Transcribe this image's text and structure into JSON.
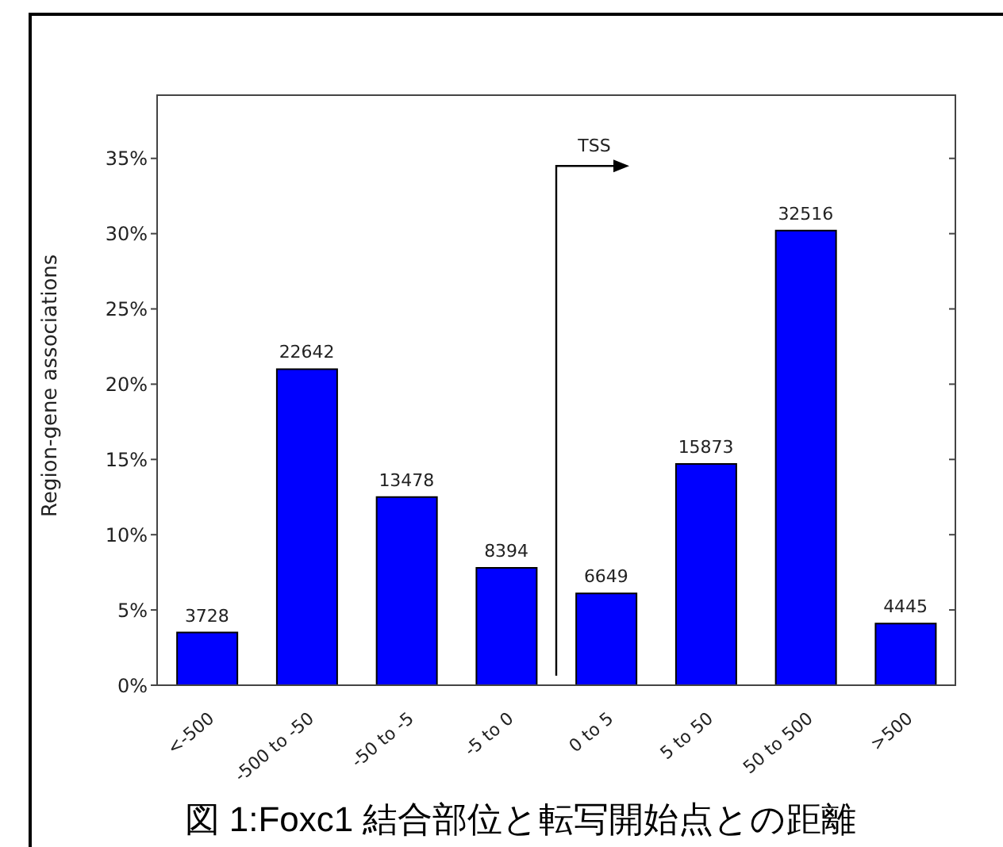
{
  "chart_data": {
    "type": "bar",
    "ylabel": "Region-gene associations",
    "categories": [
      "<-500",
      "-500 to -50",
      "-50 to -5",
      "-5 to 0",
      "0 to 5",
      "5 to 50",
      "50 to 500",
      ">500"
    ],
    "values": [
      3.5,
      21.0,
      12.5,
      7.8,
      6.1,
      14.7,
      30.2,
      4.1
    ],
    "color": "#0000ff",
    "ylim": [
      0,
      39.2
    ],
    "yticks": [
      {
        "value": 0,
        "label": "0%"
      },
      {
        "value": 5,
        "label": "5%"
      },
      {
        "value": 10,
        "label": "10%"
      },
      {
        "value": 15,
        "label": "15%"
      },
      {
        "value": 20,
        "label": "20%"
      },
      {
        "value": 25,
        "label": "25%"
      },
      {
        "value": 30,
        "label": "30%"
      },
      {
        "value": 35,
        "label": "35%"
      }
    ],
    "grid": false,
    "legend": false,
    "annotations": [
      "TSS",
      "図 1:Foxc1 結合部位と転写開始点との距離",
      {
        "text": "3728",
        "x": "<-500",
        "y": 3.5
      },
      {
        "text": "22642",
        "x": "-500 to -50",
        "y": 21.0
      },
      {
        "text": "13478",
        "x": "-50 to -5",
        "y": 12.5
      },
      {
        "text": "8394",
        "x": "-5 to 0",
        "y": 7.8
      },
      {
        "text": "6649",
        "x": "0 to 5",
        "y": 6.1
      },
      {
        "text": "15873",
        "x": "5 to 50",
        "y": 14.7
      },
      {
        "text": "32516",
        "x": "50 to 500",
        "y": 30.2
      },
      {
        "text": "4445",
        "x": ">500",
        "y": 4.1
      }
    ]
  }
}
